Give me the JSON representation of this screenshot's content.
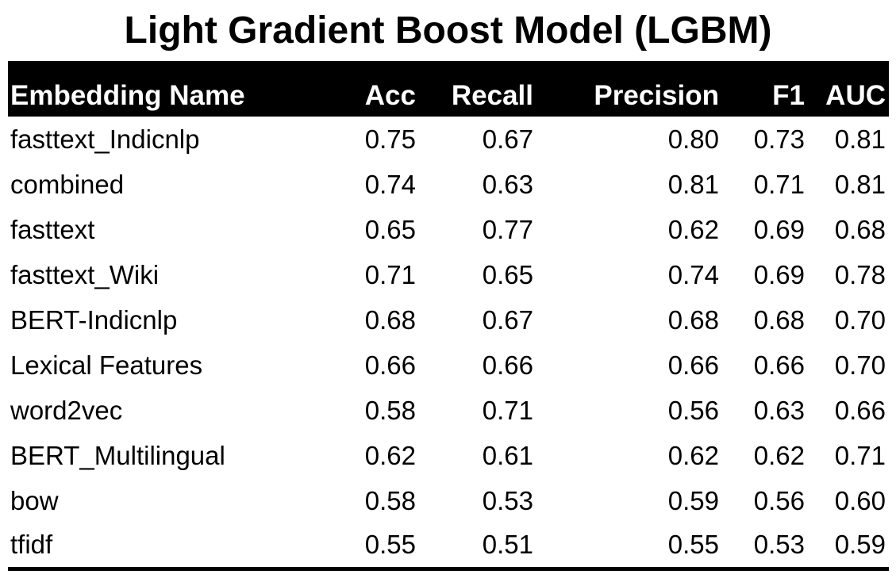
{
  "title": "Light Gradient Boost Model (LGBM)",
  "table": {
    "headers": [
      "Embedding Name",
      "Acc",
      "Recall",
      "Precision",
      "F1",
      "AUC"
    ],
    "rows": [
      [
        "fasttext_Indicnlp",
        "0.75",
        "0.67",
        "0.80",
        "0.73",
        "0.81"
      ],
      [
        "combined",
        "0.74",
        "0.63",
        "0.81",
        "0.71",
        "0.81"
      ],
      [
        "fasttext",
        "0.65",
        "0.77",
        "0.62",
        "0.69",
        "0.68"
      ],
      [
        "fasttext_Wiki",
        "0.71",
        "0.65",
        "0.74",
        "0.69",
        "0.78"
      ],
      [
        "BERT-Indicnlp",
        "0.68",
        "0.67",
        "0.68",
        "0.68",
        "0.70"
      ],
      [
        "Lexical Features",
        "0.66",
        "0.66",
        "0.66",
        "0.66",
        "0.70"
      ],
      [
        "word2vec",
        "0.58",
        "0.71",
        "0.56",
        "0.63",
        "0.66"
      ],
      [
        "BERT_Multilingual",
        "0.62",
        "0.61",
        "0.62",
        "0.62",
        "0.71"
      ],
      [
        "bow",
        "0.58",
        "0.53",
        "0.59",
        "0.56",
        "0.60"
      ],
      [
        "tfidf",
        "0.55",
        "0.51",
        "0.55",
        "0.53",
        "0.59"
      ]
    ]
  }
}
